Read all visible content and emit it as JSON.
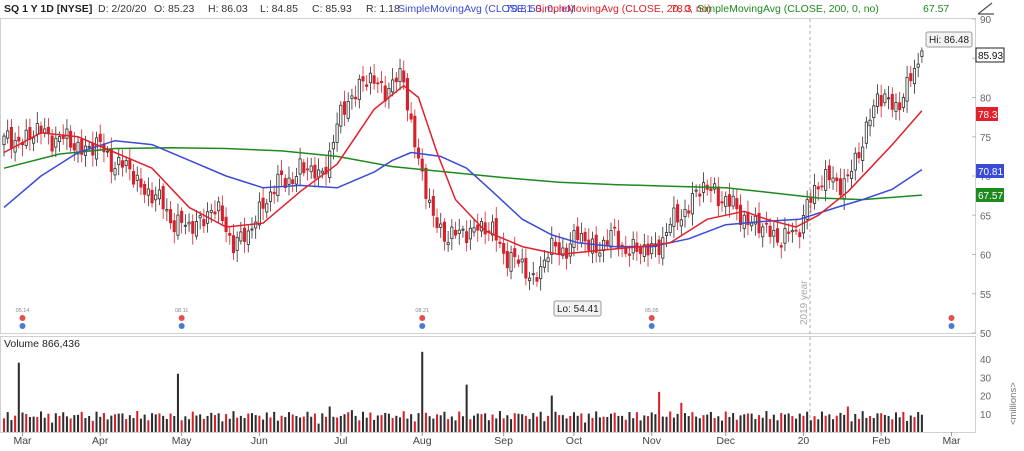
{
  "header": {
    "symbol": "SQ 1 Y 1D [NYSE]",
    "date": "D: 2/20/20",
    "open": "O: 85.23",
    "high": "H: 86.03",
    "low": "L: 84.85",
    "close": "C: 85.93",
    "range": "R: 1.18",
    "sma50_label": "SimpleMovingAvg (CLOSE, 50, 0, no)",
    "sma50_value": "70.81",
    "sma20_label": "SimpleMovingAvg (CLOSE, 20, 0, no)",
    "sma20_value": "78.3",
    "sma200_label": "SimpleMovingAvg (CLOSE, 200, 0, no)",
    "sma200_value": "67.57"
  },
  "volume_panel": {
    "label": "Volume",
    "value": "866,436",
    "unit_label": "<millions>"
  },
  "annotations": {
    "high_label": "Hi: 86.48",
    "low_label": "Lo: 54.41",
    "year_label": "2019 year",
    "last_price": "85.93",
    "event_labels": [
      "05.14",
      "08.11",
      "08.21",
      "05.05"
    ]
  },
  "colors": {
    "up": "#2d2d2d",
    "down": "#d8202a",
    "sma20": "#e0202a",
    "sma50": "#3a4bd8",
    "sma200": "#1e8a1e",
    "axis_text": "#666666",
    "event_red": "#e05050",
    "event_blue": "#4a7bd0"
  },
  "chart_data": {
    "type": "candlestick",
    "price_axis": {
      "ticks": [
        50,
        55,
        60,
        65,
        70,
        75,
        80,
        85,
        90
      ],
      "range": [
        50,
        90
      ]
    },
    "volume_axis": {
      "ticks": [
        10,
        20,
        30,
        40
      ],
      "range": [
        0,
        45
      ]
    },
    "x_labels": [
      "Mar",
      "Apr",
      "May",
      "Jun",
      "Jul",
      "Aug",
      "Sep",
      "Oct",
      "Nov",
      "Dec",
      "20",
      "Feb",
      "Mar"
    ],
    "x_label_index": [
      5,
      26,
      48,
      69,
      91,
      113,
      135,
      154,
      175,
      195,
      216,
      237,
      256
    ],
    "close_anchors": [
      [
        0,
        74
      ],
      [
        5,
        75
      ],
      [
        12,
        75.5
      ],
      [
        18,
        74
      ],
      [
        26,
        73.5
      ],
      [
        35,
        70
      ],
      [
        45,
        65
      ],
      [
        50,
        63
      ],
      [
        56,
        66
      ],
      [
        62,
        62
      ],
      [
        66,
        62
      ],
      [
        70,
        67
      ],
      [
        75,
        69
      ],
      [
        80,
        71
      ],
      [
        85,
        70
      ],
      [
        88,
        73
      ],
      [
        93,
        80
      ],
      [
        97,
        82
      ],
      [
        103,
        81.5
      ],
      [
        108,
        82
      ],
      [
        110,
        77
      ],
      [
        113,
        70
      ],
      [
        116,
        64
      ],
      [
        123,
        62
      ],
      [
        128,
        64
      ],
      [
        133,
        62
      ],
      [
        138,
        59
      ],
      [
        143,
        57
      ],
      [
        147,
        60
      ],
      [
        151,
        61
      ],
      [
        155,
        62
      ],
      [
        160,
        61
      ],
      [
        165,
        62
      ],
      [
        172,
        60
      ],
      [
        178,
        62
      ],
      [
        184,
        66
      ],
      [
        188,
        68
      ],
      [
        192,
        68.5
      ],
      [
        196,
        66
      ],
      [
        200,
        65
      ],
      [
        205,
        63
      ],
      [
        210,
        62.5
      ],
      [
        214,
        62
      ],
      [
        217,
        67
      ],
      [
        220,
        68.5
      ],
      [
        224,
        70
      ],
      [
        228,
        69
      ],
      [
        231,
        73
      ],
      [
        234,
        78
      ],
      [
        236,
        80
      ],
      [
        238,
        79
      ],
      [
        241,
        79.5
      ],
      [
        244,
        81
      ],
      [
        247,
        84
      ],
      [
        248,
        85.93
      ]
    ],
    "sma20_points": [
      [
        0,
        73
      ],
      [
        10,
        75.5
      ],
      [
        20,
        75
      ],
      [
        30,
        73
      ],
      [
        40,
        71
      ],
      [
        50,
        66
      ],
      [
        60,
        63.5
      ],
      [
        70,
        64
      ],
      [
        80,
        68
      ],
      [
        90,
        71.5
      ],
      [
        95,
        75
      ],
      [
        100,
        78.5
      ],
      [
        108,
        81.5
      ],
      [
        112,
        80
      ],
      [
        117,
        73
      ],
      [
        122,
        67
      ],
      [
        130,
        63
      ],
      [
        140,
        61
      ],
      [
        150,
        60
      ],
      [
        160,
        60.5
      ],
      [
        172,
        61
      ],
      [
        180,
        61.5
      ],
      [
        190,
        64.5
      ],
      [
        200,
        65.5
      ],
      [
        206,
        64.5
      ],
      [
        214,
        63.5
      ],
      [
        220,
        65
      ],
      [
        228,
        68
      ],
      [
        234,
        71
      ],
      [
        240,
        74
      ],
      [
        248,
        78.3
      ]
    ],
    "sma50_points": [
      [
        0,
        66
      ],
      [
        10,
        70
      ],
      [
        20,
        73
      ],
      [
        30,
        74.5
      ],
      [
        40,
        74
      ],
      [
        50,
        72
      ],
      [
        60,
        70
      ],
      [
        70,
        68.5
      ],
      [
        80,
        68.8
      ],
      [
        90,
        68.5
      ],
      [
        100,
        70.5
      ],
      [
        105,
        72
      ],
      [
        110,
        73
      ],
      [
        118,
        72.5
      ],
      [
        125,
        71
      ],
      [
        132,
        68
      ],
      [
        140,
        64.5
      ],
      [
        148,
        62.5
      ],
      [
        155,
        61.5
      ],
      [
        165,
        61
      ],
      [
        175,
        61
      ],
      [
        185,
        62
      ],
      [
        195,
        63.8
      ],
      [
        205,
        64.2
      ],
      [
        215,
        64.5
      ],
      [
        225,
        66
      ],
      [
        232,
        67
      ],
      [
        240,
        68.3
      ],
      [
        248,
        70.81
      ]
    ],
    "sma200_points": [
      [
        0,
        71
      ],
      [
        15,
        72.8
      ],
      [
        30,
        73.5
      ],
      [
        45,
        73.6
      ],
      [
        60,
        73.5
      ],
      [
        75,
        73.2
      ],
      [
        90,
        72.5
      ],
      [
        105,
        71.2
      ],
      [
        120,
        70.5
      ],
      [
        135,
        69.8
      ],
      [
        150,
        69.2
      ],
      [
        165,
        68.9
      ],
      [
        180,
        68.7
      ],
      [
        195,
        68.5
      ],
      [
        205,
        68
      ],
      [
        220,
        67.2
      ],
      [
        232,
        67
      ],
      [
        248,
        67.57
      ]
    ],
    "volume_spikes": [
      [
        4,
        38
      ],
      [
        47,
        32
      ],
      [
        113,
        44
      ],
      [
        125,
        26
      ],
      [
        177,
        22
      ],
      [
        148,
        20
      ],
      [
        88,
        14
      ],
      [
        94,
        12
      ],
      [
        183,
        16
      ],
      [
        228,
        14
      ]
    ]
  }
}
